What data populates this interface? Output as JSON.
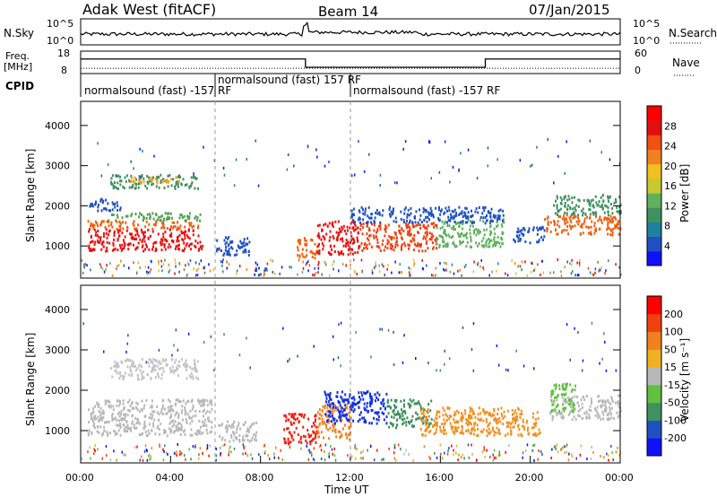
{
  "header": {
    "station": "Adak West (fitACF)",
    "beam": "Beam 14",
    "date": "07/Jan/2015"
  },
  "chart_data": [
    {
      "type": "line",
      "name": "noise",
      "labels": {
        "left": "N.Sky",
        "right": "N.Search",
        "left_ticks": [
          "10^5",
          "10^0"
        ],
        "right_ticks": [
          "10^5",
          "10^0"
        ]
      },
      "note": "N.Sky solid, N.Search dotted, log scale 10^0 to 10^5"
    },
    {
      "type": "line",
      "name": "frequency-nave",
      "labels": {
        "left_line1": "Freq.",
        "left_line2": "[MHz]",
        "right": "Nave",
        "left_ticks": [
          "18",
          "8"
        ],
        "right_ticks": [
          "60",
          "0"
        ]
      },
      "freq_steps": [
        {
          "start_hr": 0,
          "end_hr": 10,
          "freq_mhz": 14.5
        },
        {
          "start_hr": 10,
          "end_hr": 18,
          "freq_mhz": 10.8
        },
        {
          "start_hr": 18,
          "end_hr": 24,
          "freq_mhz": 14.5
        }
      ],
      "nave_level": 14,
      "ylim_freq": [
        8,
        18
      ],
      "ylim_nave": [
        0,
        60
      ]
    },
    {
      "type": "table",
      "name": "cpid",
      "label": "CPID",
      "segments": [
        {
          "start_hr": 0,
          "end_hr": 6,
          "text": "normalsound (fast) -157 RF"
        },
        {
          "start_hr": 6,
          "end_hr": 12,
          "text": "normalsound (fast) 157 RF"
        },
        {
          "start_hr": 12,
          "end_hr": 24,
          "text": "normalsound (fast) -157 RF"
        }
      ]
    },
    {
      "type": "heatmap",
      "name": "power",
      "ylabel": "Slant Range [km]",
      "yticks": [
        "1000",
        "2000",
        "3000",
        "4000"
      ],
      "ylim": [
        200,
        4600
      ],
      "colorbar": {
        "title": "Power [dB]",
        "ticks": [
          "28",
          "24",
          "20",
          "16",
          "12",
          "8",
          "4"
        ],
        "colors": [
          "#1010ff",
          "#2050c0",
          "#2080a0",
          "#409060",
          "#60b060",
          "#c8c830",
          "#f0c020",
          "#f08020",
          "#f05010",
          "#e01010",
          "#ff0000"
        ]
      },
      "scatter_blocks": [
        {
          "t0": 0.3,
          "t1": 5.4,
          "r0": 900,
          "r1": 1450,
          "c": "#e81010"
        },
        {
          "t0": 0.3,
          "t1": 5.4,
          "r0": 1450,
          "r1": 1650,
          "c": "#f06010"
        },
        {
          "t0": 1.2,
          "t1": 5.4,
          "r0": 1650,
          "r1": 1850,
          "c": "#50a050"
        },
        {
          "t0": 0.3,
          "t1": 1.8,
          "r0": 1900,
          "r1": 2200,
          "c": "#2050c0"
        },
        {
          "t0": 1.3,
          "t1": 5.2,
          "r0": 2450,
          "r1": 2800,
          "c": "#409060"
        },
        {
          "t0": 2.2,
          "t1": 4.6,
          "r0": 2600,
          "r1": 2750,
          "c": "#f0a020"
        },
        {
          "t0": 6.0,
          "t1": 7.6,
          "r0": 800,
          "r1": 1250,
          "c": "#2050c0"
        },
        {
          "t0": 7.7,
          "t1": 8.3,
          "r0": 300,
          "r1": 500,
          "c": "#2050c0"
        },
        {
          "t0": 9.6,
          "t1": 10.5,
          "r0": 700,
          "r1": 1250,
          "c": "#f06010"
        },
        {
          "t0": 10.5,
          "t1": 12.4,
          "r0": 800,
          "r1": 1650,
          "c": "#e81010"
        },
        {
          "t0": 12.4,
          "t1": 15.8,
          "r0": 900,
          "r1": 1600,
          "c": "#f04010"
        },
        {
          "t0": 15.8,
          "t1": 18.8,
          "r0": 1000,
          "r1": 1700,
          "c": "#60b060"
        },
        {
          "t0": 12.0,
          "t1": 18.8,
          "r0": 1600,
          "r1": 2000,
          "c": "#2050c0"
        },
        {
          "t0": 19.2,
          "t1": 20.6,
          "r0": 1100,
          "r1": 1500,
          "c": "#2050c0"
        },
        {
          "t0": 20.6,
          "t1": 24.0,
          "r0": 1300,
          "r1": 1800,
          "c": "#f06010"
        },
        {
          "t0": 21.0,
          "t1": 24.0,
          "r0": 1800,
          "r1": 2300,
          "c": "#409060"
        }
      ]
    },
    {
      "type": "heatmap",
      "name": "velocity",
      "ylabel": "Slant Range [km]",
      "yticks": [
        "1000",
        "2000",
        "3000",
        "4000"
      ],
      "ylim": [
        200,
        4600
      ],
      "xlabel": "Time UT",
      "xticks": [
        "00:00",
        "04:00",
        "08:00",
        "12:00",
        "16:00",
        "20:00",
        "00:00"
      ],
      "xlim": [
        0,
        24
      ],
      "colorbar": {
        "title": "Velocity [m s⁻¹]",
        "ticks": [
          "200",
          "100",
          "50",
          "15",
          "-15",
          "-50",
          "-100",
          "-200"
        ],
        "colors": [
          "#1010ff",
          "#2050c0",
          "#409060",
          "#60c040",
          "#b8b8b8",
          "#f0b020",
          "#f08020",
          "#f04010",
          "#ff0000"
        ]
      },
      "scatter_blocks": [
        {
          "t0": 0.3,
          "t1": 5.8,
          "r0": 900,
          "r1": 1800,
          "c": "#b8b8b8"
        },
        {
          "t0": 1.3,
          "t1": 5.2,
          "r0": 2300,
          "r1": 2800,
          "c": "#c4c4c4"
        },
        {
          "t0": 6.1,
          "t1": 7.8,
          "r0": 750,
          "r1": 1300,
          "c": "#b8b8b8"
        },
        {
          "t0": 9.0,
          "t1": 10.5,
          "r0": 700,
          "r1": 1450,
          "c": "#f02010"
        },
        {
          "t0": 10.5,
          "t1": 12.0,
          "r0": 800,
          "r1": 1700,
          "c": "#f08020"
        },
        {
          "t0": 10.8,
          "t1": 13.6,
          "r0": 1200,
          "r1": 2000,
          "c": "#1030e0"
        },
        {
          "t0": 13.6,
          "t1": 15.6,
          "r0": 1100,
          "r1": 1800,
          "c": "#409060"
        },
        {
          "t0": 15.0,
          "t1": 20.4,
          "r0": 900,
          "r1": 1600,
          "c": "#f09020"
        },
        {
          "t0": 20.8,
          "t1": 24.0,
          "r0": 1300,
          "r1": 1900,
          "c": "#b8b8b8"
        },
        {
          "t0": 20.9,
          "t1": 22.0,
          "r0": 1500,
          "r1": 2200,
          "c": "#60c040"
        }
      ]
    }
  ]
}
